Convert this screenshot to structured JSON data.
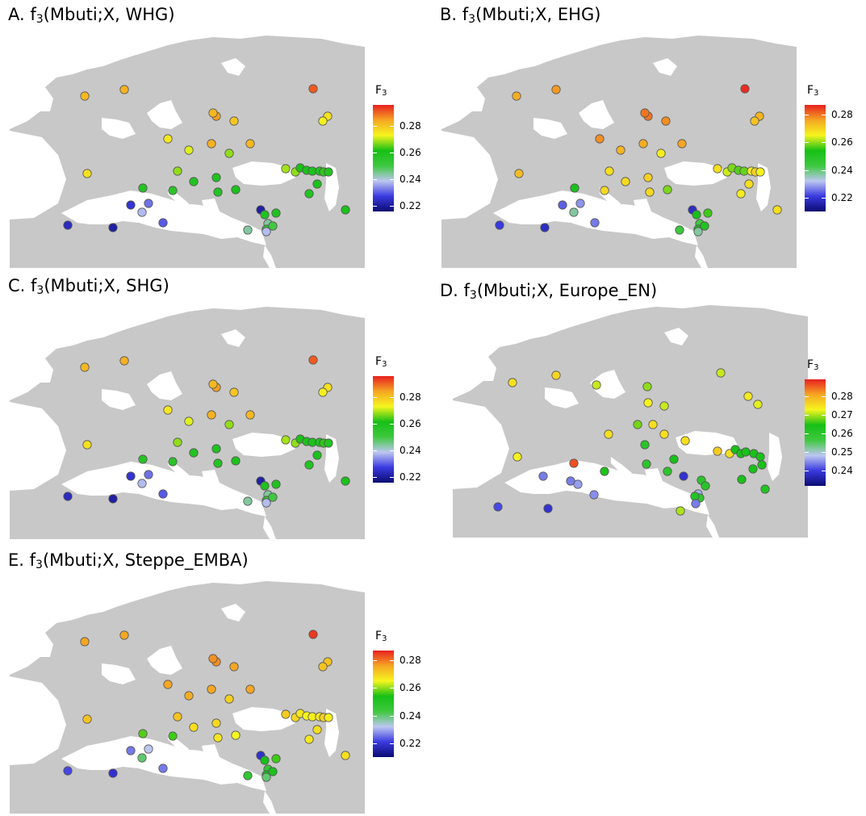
{
  "colors": {
    "land": "#c8c8c8",
    "background": "#ffffff",
    "marker_stroke": "#555555",
    "scale": [
      "#0b0b72",
      "#3a3ae0",
      "#bcc7f0",
      "#3ec83e",
      "#16c016",
      "#f5f51e",
      "#f5a623",
      "#e82020"
    ]
  },
  "panels": [
    {
      "id": "A",
      "title_prefix": "A. f",
      "title_sub": "3",
      "title_suffix": "(Mbuti;X, WHG)",
      "legend_title": "F",
      "legend_sub": "3",
      "ticks": [
        "0.28",
        "0.26",
        "0.24",
        "0.22"
      ],
      "tick_values": [
        0.28,
        0.26,
        0.24,
        0.22
      ],
      "scale_min": 0.216,
      "scale_max": 0.296
    },
    {
      "id": "B",
      "title_prefix": "B. f",
      "title_sub": "3",
      "title_suffix": "(Mbuti;X, EHG)",
      "legend_title": "F",
      "legend_sub": "3",
      "ticks": [
        "0.28",
        "0.26",
        "0.24",
        "0.22"
      ],
      "tick_values": [
        0.28,
        0.26,
        0.24,
        0.22
      ],
      "scale_min": 0.21,
      "scale_max": 0.287
    },
    {
      "id": "C",
      "title_prefix": "C. f",
      "title_sub": "3",
      "title_suffix": "(Mbuti;X, SHG)",
      "legend_title": "F",
      "legend_sub": "3",
      "ticks": [
        "0.28",
        "0.26",
        "0.24",
        "0.22"
      ],
      "tick_values": [
        0.28,
        0.26,
        0.24,
        0.22
      ],
      "scale_min": 0.216,
      "scale_max": 0.296
    },
    {
      "id": "D",
      "title_prefix": "D. f",
      "title_sub": "3",
      "title_suffix": "(Mbuti;X, Europe_EN)",
      "legend_title": "F",
      "legend_sub": "3",
      "ticks": [
        "0.28",
        "0.27",
        "0.26",
        "0.25",
        "0.24"
      ],
      "tick_values": [
        0.28,
        0.27,
        0.26,
        0.25,
        0.24
      ],
      "scale_min": 0.232,
      "scale_max": 0.289
    },
    {
      "id": "E",
      "title_prefix": "E. f",
      "title_sub": "3",
      "title_suffix": "(Mbuti;X, Steppe_EMBA)",
      "legend_title": "F",
      "legend_sub": "3",
      "ticks": [
        "0.28",
        "0.26",
        "0.24",
        "0.22"
      ],
      "tick_values": [
        0.28,
        0.26,
        0.24,
        0.22
      ],
      "scale_min": 0.21,
      "scale_max": 0.287
    }
  ],
  "sample_values": {
    "A": [
      0.282,
      0.283,
      0.285,
      0.291,
      0.282,
      0.275,
      0.28,
      0.272,
      0.283,
      0.282,
      0.276,
      0.274,
      0.276,
      0.268,
      0.268,
      0.269,
      0.268,
      0.262,
      0.26,
      0.26,
      0.259,
      0.263,
      0.258,
      0.26,
      0.258,
      0.26,
      0.258,
      0.259,
      0.258,
      0.256,
      0.26,
      0.257,
      0.232,
      0.226,
      0.23,
      0.224,
      0.221,
      0.221,
      0.259,
      0.259,
      0.244,
      0.256,
      0.25,
      0.244,
      0.238,
      0.238,
      0.275
    ],
    "B": [
      0.275,
      0.277,
      0.28,
      0.286,
      0.28,
      0.278,
      0.278,
      0.274,
      0.275,
      0.276,
      0.274,
      0.272,
      0.273,
      0.268,
      0.266,
      0.268,
      0.263,
      0.259,
      0.257,
      0.258,
      0.266,
      0.27,
      0.265,
      0.268,
      0.266,
      0.268,
      0.269,
      0.27,
      0.269,
      0.269,
      0.259,
      0.253,
      0.228,
      0.224,
      0.226,
      0.221,
      0.218,
      0.218,
      0.254,
      0.256,
      0.243,
      0.254,
      0.251,
      0.243,
      0.237,
      0.237,
      0.273
    ],
    "C": [
      0.282,
      0.283,
      0.285,
      0.291,
      0.282,
      0.275,
      0.28,
      0.272,
      0.283,
      0.282,
      0.276,
      0.274,
      0.276,
      0.268,
      0.268,
      0.269,
      0.268,
      0.262,
      0.26,
      0.26,
      0.259,
      0.263,
      0.258,
      0.26,
      0.258,
      0.26,
      0.258,
      0.259,
      0.258,
      0.256,
      0.26,
      0.257,
      0.232,
      0.226,
      0.23,
      0.224,
      0.221,
      0.221,
      0.259,
      0.259,
      0.244,
      0.256,
      0.25,
      0.244,
      0.238,
      0.238,
      0.275
    ],
    "D": [
      0.275,
      0.276,
      0.269,
      0.271,
      0.273,
      0.271,
      0.271,
      0.268,
      0.275,
      0.275,
      0.274,
      0.272,
      0.273,
      0.275,
      0.275,
      0.277,
      0.275,
      0.264,
      0.264,
      0.264,
      0.264,
      0.264,
      0.264,
      0.264,
      0.264,
      0.262,
      0.261,
      0.264,
      0.26,
      0.263,
      0.26,
      0.286,
      0.246,
      0.244,
      0.245,
      0.241,
      0.239,
      0.239,
      0.26,
      0.261,
      0.247,
      0.259,
      0.262,
      0.27,
      0.244,
      0.244,
      0.28
    ],
    "E": [
      0.276,
      0.276,
      0.278,
      0.285,
      0.278,
      0.276,
      0.276,
      0.275,
      0.276,
      0.276,
      0.272,
      0.272,
      0.272,
      0.272,
      0.27,
      0.271,
      0.269,
      0.267,
      0.265,
      0.266,
      0.267,
      0.27,
      0.266,
      0.268,
      0.267,
      0.268,
      0.268,
      0.269,
      0.267,
      0.256,
      0.265,
      0.257,
      0.232,
      0.226,
      0.226,
      0.222,
      0.219,
      0.219,
      0.254,
      0.256,
      0.246,
      0.254,
      0.252,
      0.246,
      0.24,
      0.24,
      0.273
    ]
  }
}
